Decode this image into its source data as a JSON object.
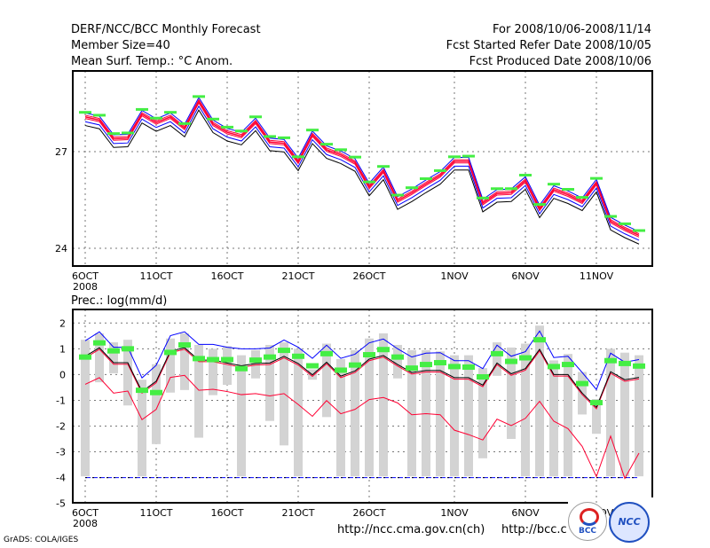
{
  "header": {
    "title": "DERF/NCC/BCC Monthly Forecast",
    "member_size": "Member Size=40",
    "variable": "Mean Surf. Temp.: °C Anom.",
    "period": "For 2008/10/06-2008/11/14",
    "refer_date": "Fcst Started Refer Date 2008/10/05",
    "produced_date": "Fcst Produced Date 2008/10/06"
  },
  "footer": {
    "grads": "GrADS: COLA/IGES",
    "url1": "http://ncc.cma.gov.cn(ch)",
    "url2": "http://bcc.c",
    "logo_bcc": "BCC",
    "logo_ncc": "NCC"
  },
  "colors": {
    "obs": "#44ee44",
    "max": "#0000ff",
    "mean": "#000000",
    "pct": "#ff0033",
    "box": "#d3d3d3"
  },
  "chart_data": [
    {
      "type": "line",
      "title": "Mean Surf. Temp.: °C Anom.",
      "x_ticks": [
        {
          "day": 0,
          "label": "6OCT"
        },
        {
          "day": 5,
          "label": "11OCT"
        },
        {
          "day": 10,
          "label": "16OCT"
        },
        {
          "day": 15,
          "label": "21OCT"
        },
        {
          "day": 20,
          "label": "26OCT"
        },
        {
          "day": 26,
          "label": "1NOV"
        },
        {
          "day": 31,
          "label": "6NOV"
        },
        {
          "day": 36,
          "label": "11NOV"
        }
      ],
      "year_label": "2008",
      "y_ticks": [
        24,
        27
      ],
      "ylim": [
        23.45,
        29.5
      ],
      "observed": [
        28.22,
        28.13,
        27.56,
        27.58,
        28.31,
        28.04,
        28.22,
        27.87,
        28.71,
        28.01,
        27.76,
        27.64,
        28.08,
        27.47,
        27.43,
        26.84,
        27.67,
        27.23,
        27.06,
        26.83,
        26.06,
        26.54,
        25.65,
        25.88,
        26.16,
        26.41,
        26.84,
        26.86,
        25.56,
        25.85,
        25.85,
        26.27,
        25.36,
        25.99,
        25.83,
        25.58,
        26.17,
        24.99,
        24.76,
        24.55
      ],
      "ensemble_mean": [
        28.08,
        27.98,
        27.4,
        27.42,
        28.16,
        27.9,
        28.08,
        27.73,
        28.56,
        27.86,
        27.6,
        27.48,
        27.92,
        27.3,
        27.26,
        26.68,
        27.52,
        27.06,
        26.9,
        26.66,
        25.9,
        26.4,
        25.48,
        25.72,
        26.0,
        26.26,
        26.7,
        26.7,
        25.4,
        25.7,
        25.72,
        26.1,
        25.22,
        25.82,
        25.66,
        25.44,
        26.02,
        24.84,
        24.6,
        24.4
      ],
      "line_offsets": {
        "max": 0.12,
        "upper_pct": 0.05,
        "lower_pct": -0.05,
        "min_blue": -0.15,
        "min": -0.27
      }
    },
    {
      "type": "line",
      "title": "Prec.: log(mm/d)",
      "y_ticks": [
        2,
        1,
        0,
        -1,
        -2,
        -3,
        -4,
        -5
      ],
      "ylim": [
        -5,
        2.5
      ],
      "observed": [
        0.68,
        1.23,
        0.92,
        1.0,
        -0.61,
        -0.7,
        0.86,
        1.15,
        0.62,
        0.58,
        0.58,
        0.23,
        0.56,
        0.68,
        0.94,
        0.71,
        0.34,
        0.81,
        0.17,
        0.37,
        0.77,
        0.97,
        0.68,
        0.25,
        0.39,
        0.46,
        0.31,
        0.29,
        -0.09,
        0.81,
        0.51,
        0.65,
        1.35,
        0.31,
        0.39,
        -0.35,
        -1.09,
        0.54,
        0.43,
        0.33
      ],
      "max": [
        1.31,
        1.66,
        1.06,
        1.06,
        -0.13,
        0.36,
        1.51,
        1.66,
        1.17,
        1.17,
        1.06,
        1.0,
        1.0,
        1.03,
        1.34,
        1.06,
        0.63,
        1.14,
        0.63,
        0.79,
        1.23,
        1.38,
        1.0,
        0.68,
        0.83,
        0.85,
        0.54,
        0.54,
        0.23,
        1.14,
        0.71,
        0.89,
        1.69,
        0.66,
        0.71,
        0.08,
        -0.58,
        0.83,
        0.48,
        0.58
      ],
      "mean": [
        0.71,
        1.04,
        0.46,
        0.46,
        -0.66,
        -0.26,
        0.91,
        1.04,
        0.56,
        0.56,
        0.45,
        0.34,
        0.43,
        0.45,
        0.71,
        0.43,
        -0.01,
        0.48,
        -0.06,
        0.14,
        0.6,
        0.74,
        0.39,
        0.08,
        0.16,
        0.16,
        -0.12,
        -0.12,
        -0.41,
        0.45,
        0.03,
        0.23,
        0.98,
        0.0,
        0.0,
        -0.72,
        -1.27,
        0.11,
        -0.2,
        -0.11
      ],
      "upper_red_offset": -0.06,
      "lower_red": [
        -0.38,
        -0.12,
        -0.72,
        -0.64,
        -1.75,
        -1.35,
        -0.11,
        -0.03,
        -0.61,
        -0.57,
        -0.66,
        -0.78,
        -0.74,
        -0.83,
        -0.74,
        -1.16,
        -1.62,
        -1.01,
        -1.52,
        -1.35,
        -0.97,
        -0.89,
        -1.1,
        -1.56,
        -1.52,
        -1.56,
        -2.16,
        -2.33,
        -2.54,
        -1.73,
        -1.98,
        -1.7,
        -1.04,
        -1.81,
        -2.1,
        -2.79,
        -3.96,
        -2.39,
        -4.03,
        -3.05
      ],
      "min_line": -4,
      "box_top": [
        1.35,
        1.6,
        1.25,
        1.35,
        -0.2,
        0.4,
        1.4,
        1.6,
        1.15,
        1.0,
        1.1,
        0.75,
        0.95,
        1.15,
        1.25,
        1.0,
        0.2,
        1.2,
        0.6,
        0.95,
        1.4,
        1.6,
        1.15,
        0.95,
        0.95,
        0.9,
        0.75,
        0.75,
        0.25,
        1.25,
        1.05,
        1.2,
        1.9,
        0.55,
        0.8,
        0.1,
        -0.95,
        1.0,
        0.85,
        0.75
      ],
      "box_bottom": [
        -3.95,
        -0.3,
        0.05,
        -1.2,
        -3.95,
        -2.7,
        -0.7,
        -0.6,
        -2.45,
        -0.8,
        -0.4,
        -3.95,
        -0.15,
        -1.8,
        -2.75,
        -3.95,
        -0.2,
        -1.65,
        -3.95,
        -3.95,
        -3.95,
        -3.95,
        -0.15,
        -3.95,
        -3.95,
        -3.95,
        -3.95,
        -3.95,
        -3.25,
        -0.05,
        -2.5,
        -3.95,
        -3.95,
        -3.95,
        -3.95,
        -1.55,
        -2.3,
        -3.95,
        -3.95,
        -3.95
      ]
    }
  ]
}
